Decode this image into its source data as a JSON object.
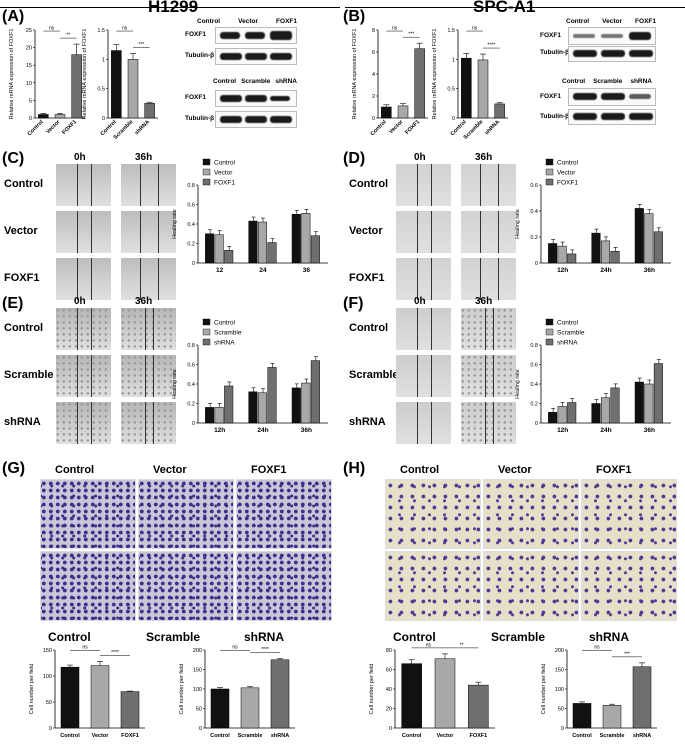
{
  "headers": {
    "left": "H1299",
    "right": "SPC-A1"
  },
  "panel_labels": {
    "A": "(A)",
    "B": "(B)",
    "C": "(C)",
    "D": "(D)",
    "E": "(E)",
    "F": "(F)",
    "G": "(G)",
    "H": "(H)"
  },
  "time_labels": {
    "t0": "0h",
    "t36": "36h"
  },
  "row_labels_oe": [
    "Control",
    "Vector",
    "FOXF1"
  ],
  "row_labels_kd": [
    "Control",
    "Scramble",
    "shRNA"
  ],
  "blots": {
    "oe_cols": [
      "Control",
      "Vector",
      "FOXF1"
    ],
    "kd_cols": [
      "Control",
      "Scramble",
      "shRNA"
    ],
    "target": "FOXF1",
    "loading": "Tubulin-β"
  },
  "colors": {
    "black": "#111111",
    "grey": "#a8a8a8",
    "darkgrey": "#6f6f6f",
    "stain": "#4b3a8f"
  },
  "chart_data": [
    {
      "id": "A1",
      "type": "bar",
      "categories": [
        "Control",
        "Vector",
        "FOXF1"
      ],
      "values": [
        1,
        1,
        18
      ],
      "errors": [
        0.3,
        0.3,
        3
      ],
      "ylabel": "Relative mRNA expression of FOXF1",
      "ylim": [
        0,
        25
      ],
      "yticks": [
        0,
        5,
        10,
        15,
        20,
        25
      ],
      "sig": [
        {
          "a": 0,
          "b": 1,
          "t": "ns"
        },
        {
          "a": 1,
          "b": 2,
          "t": "**"
        }
      ]
    },
    {
      "id": "A2",
      "type": "bar",
      "categories": [
        "Control",
        "Scramble",
        "shRNA"
      ],
      "values": [
        1.15,
        1.0,
        0.25
      ],
      "errors": [
        0.1,
        0.1,
        0.02
      ],
      "ylabel": "Relative mRNA expression of FOXF1",
      "ylim": [
        0,
        1.5
      ],
      "yticks": [
        0.0,
        0.5,
        1.0,
        1.5
      ],
      "sig": [
        {
          "a": 0,
          "b": 1,
          "t": "ns"
        },
        {
          "a": 1,
          "b": 2,
          "t": "***"
        }
      ]
    },
    {
      "id": "B1",
      "type": "bar",
      "categories": [
        "Control",
        "Vector",
        "FOXF1"
      ],
      "values": [
        1,
        1.1,
        6.3
      ],
      "errors": [
        0.2,
        0.2,
        0.5
      ],
      "ylabel": "Relative mRNA expression of FOXF1",
      "ylim": [
        0,
        8
      ],
      "yticks": [
        0,
        2,
        4,
        6,
        8
      ],
      "sig": [
        {
          "a": 0,
          "b": 1,
          "t": "ns"
        },
        {
          "a": 1,
          "b": 2,
          "t": "***"
        }
      ]
    },
    {
      "id": "B2",
      "type": "bar",
      "categories": [
        "Control",
        "Scramble",
        "shRNA"
      ],
      "values": [
        1.02,
        0.99,
        0.24
      ],
      "errors": [
        0.08,
        0.1,
        0.02
      ],
      "ylabel": "Relative mRNA expression of FOXF1",
      "ylim": [
        0,
        1.5
      ],
      "yticks": [
        0.0,
        0.5,
        1.0,
        1.5
      ],
      "sig": [
        {
          "a": 0,
          "b": 1,
          "t": "ns"
        },
        {
          "a": 1,
          "b": 2,
          "t": "****"
        }
      ]
    },
    {
      "id": "C",
      "type": "bar",
      "categories": [
        "12",
        "24",
        "36"
      ],
      "series": [
        {
          "name": "Control",
          "values": [
            0.3,
            0.43,
            0.5
          ]
        },
        {
          "name": "Vector",
          "values": [
            0.29,
            0.42,
            0.51
          ]
        },
        {
          "name": "FOXF1",
          "values": [
            0.13,
            0.21,
            0.28
          ]
        }
      ],
      "ylabel": "Healing rate",
      "ylim": [
        0,
        0.8
      ],
      "yticks": [
        0.0,
        0.2,
        0.4,
        0.6,
        0.8
      ]
    },
    {
      "id": "D",
      "type": "bar",
      "categories": [
        "12h",
        "24h",
        "36h"
      ],
      "series": [
        {
          "name": "Control",
          "values": [
            0.15,
            0.23,
            0.42
          ]
        },
        {
          "name": "Vector",
          "values": [
            0.13,
            0.17,
            0.38
          ]
        },
        {
          "name": "FOXF1",
          "values": [
            0.07,
            0.09,
            0.24
          ]
        }
      ],
      "ylabel": "Healing rate",
      "ylim": [
        0,
        0.6
      ],
      "yticks": [
        0.0,
        0.2,
        0.4,
        0.6
      ]
    },
    {
      "id": "E",
      "type": "bar",
      "categories": [
        "12h",
        "24h",
        "36h"
      ],
      "series": [
        {
          "name": "Control",
          "values": [
            0.16,
            0.32,
            0.36
          ]
        },
        {
          "name": "Scramble",
          "values": [
            0.16,
            0.31,
            0.41
          ]
        },
        {
          "name": "shRNA",
          "values": [
            0.38,
            0.57,
            0.64
          ]
        }
      ],
      "ylabel": "Healing rate",
      "ylim": [
        0,
        0.8
      ],
      "yticks": [
        0.0,
        0.2,
        0.4,
        0.6,
        0.8
      ]
    },
    {
      "id": "F",
      "type": "bar",
      "categories": [
        "12h",
        "24h",
        "36h"
      ],
      "series": [
        {
          "name": "Control",
          "values": [
            0.11,
            0.2,
            0.42
          ]
        },
        {
          "name": "Scramble",
          "values": [
            0.17,
            0.26,
            0.4
          ]
        },
        {
          "name": "shRNA",
          "values": [
            0.21,
            0.36,
            0.61
          ]
        }
      ],
      "ylabel": "Healing rate",
      "ylim": [
        0,
        0.8
      ],
      "yticks": [
        0.0,
        0.2,
        0.4,
        0.6,
        0.8
      ]
    },
    {
      "id": "G1",
      "type": "bar",
      "categories": [
        "Control",
        "Vector",
        "FOXF1"
      ],
      "values": [
        117,
        120,
        70
      ],
      "errors": [
        4,
        8,
        1
      ],
      "ylabel": "Cell number per field",
      "ylim": [
        0,
        150
      ],
      "yticks": [
        0,
        50,
        100,
        150
      ],
      "sig": [
        {
          "a": 0,
          "b": 1,
          "t": "ns"
        },
        {
          "a": 1,
          "b": 2,
          "t": "****"
        }
      ]
    },
    {
      "id": "G2",
      "type": "bar",
      "categories": [
        "Control",
        "Scramble",
        "shRNA"
      ],
      "values": [
        100,
        103,
        175
      ],
      "errors": [
        4,
        3,
        3
      ],
      "ylabel": "Cell number per field",
      "ylim": [
        0,
        200
      ],
      "yticks": [
        0,
        50,
        100,
        150,
        200
      ],
      "sig": [
        {
          "a": 0,
          "b": 1,
          "t": "ns"
        },
        {
          "a": 1,
          "b": 2,
          "t": "****"
        }
      ]
    },
    {
      "id": "H1",
      "type": "bar",
      "categories": [
        "Control",
        "Vector",
        "FOXF1"
      ],
      "values": [
        66,
        71,
        44
      ],
      "errors": [
        4,
        5,
        3
      ],
      "ylabel": "Cell number per field",
      "ylim": [
        0,
        80
      ],
      "yticks": [
        0,
        20,
        40,
        60,
        80
      ],
      "sig": [
        {
          "a": 0,
          "b": 1,
          "t": "ns"
        },
        {
          "a": 1,
          "b": 2,
          "t": "**"
        }
      ]
    },
    {
      "id": "H2",
      "type": "bar",
      "categories": [
        "Control",
        "Scramble",
        "shRNA"
      ],
      "values": [
        63,
        58,
        157
      ],
      "errors": [
        4,
        3,
        10
      ],
      "ylabel": "Cell number per field",
      "ylim": [
        0,
        200
      ],
      "yticks": [
        0,
        50,
        100,
        150,
        200
      ],
      "sig": [
        {
          "a": 0,
          "b": 1,
          "t": "ns"
        },
        {
          "a": 1,
          "b": 2,
          "t": "***"
        }
      ]
    }
  ]
}
